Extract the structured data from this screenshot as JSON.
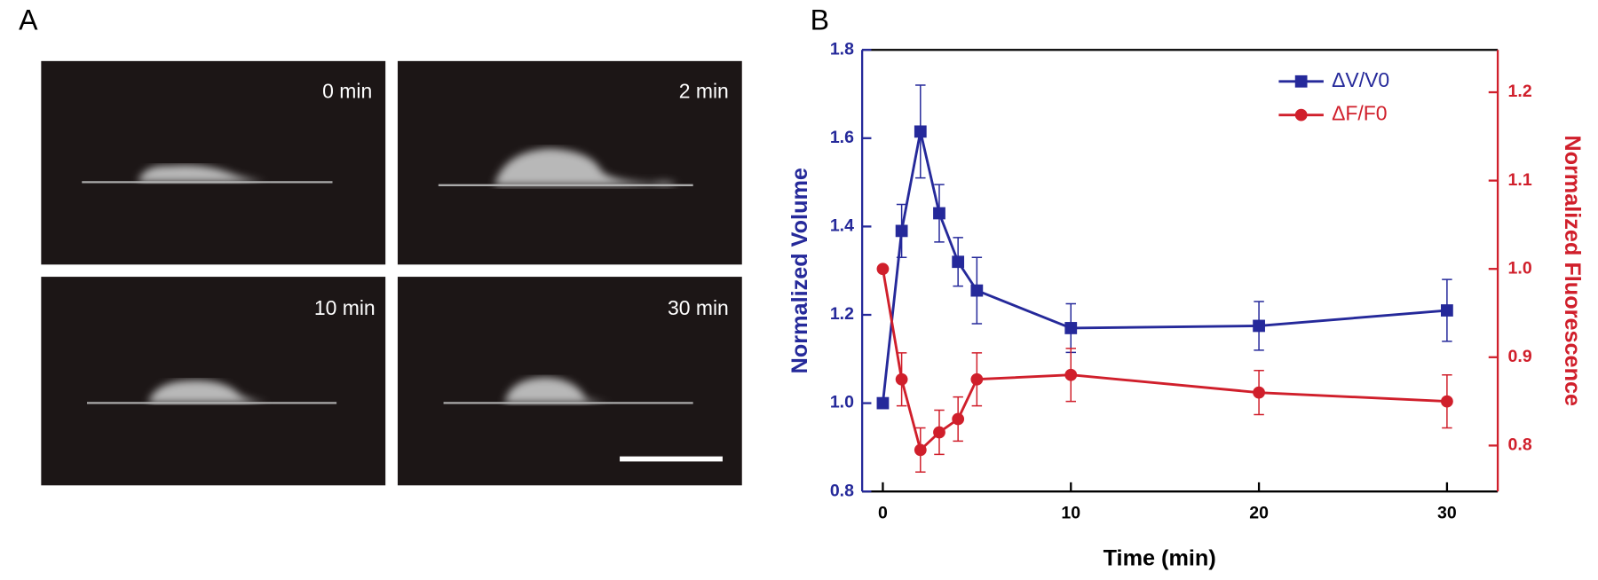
{
  "panel_a": {
    "label": "A",
    "images": [
      {
        "label": "0 min"
      },
      {
        "label": "2 min"
      },
      {
        "label": "10 min"
      },
      {
        "label": "30 min"
      }
    ]
  },
  "chart_data": {
    "type": "line",
    "panel_label": "B",
    "x_label": "Time (min)",
    "y_label": "Normalized Volume",
    "y2_label": "Normalized Fluorescence",
    "x": [
      0,
      1,
      2,
      3,
      4,
      5,
      10,
      20,
      30
    ],
    "series": [
      {
        "name": "ΔV/V0",
        "color": "#25299a",
        "marker": "square",
        "values": [
          1.0,
          1.39,
          1.615,
          1.43,
          1.32,
          1.255,
          1.17,
          1.175,
          1.21
        ],
        "errors": [
          0,
          0.06,
          0.105,
          0.065,
          0.055,
          0.075,
          0.055,
          0.055,
          0.07
        ]
      },
      {
        "name": "ΔF/F0",
        "color": "#d01f2b",
        "marker": "circle",
        "axis": "y2",
        "values": [
          1.0,
          0.875,
          0.795,
          0.815,
          0.83,
          0.875,
          0.88,
          0.86,
          0.85
        ],
        "errors": [
          0,
          0.03,
          0.025,
          0.025,
          0.025,
          0.03,
          0.03,
          0.025,
          0.03
        ]
      }
    ],
    "xlim": [
      -1.1,
      32.7
    ],
    "xticks": [
      0,
      10,
      20,
      30
    ],
    "ylim": [
      0.8,
      1.8
    ],
    "yticks": [
      0.8,
      {
        "value": 1,
        "label": "1.0"
      },
      1.2,
      1.4,
      1.6,
      1.8
    ],
    "y2lim": [
      0.748,
      1.248
    ],
    "y2ticks": [
      0.8,
      0.9,
      {
        "value": 1,
        "label": "1.0"
      },
      1.1,
      1.2
    ],
    "legend": "upper right"
  }
}
